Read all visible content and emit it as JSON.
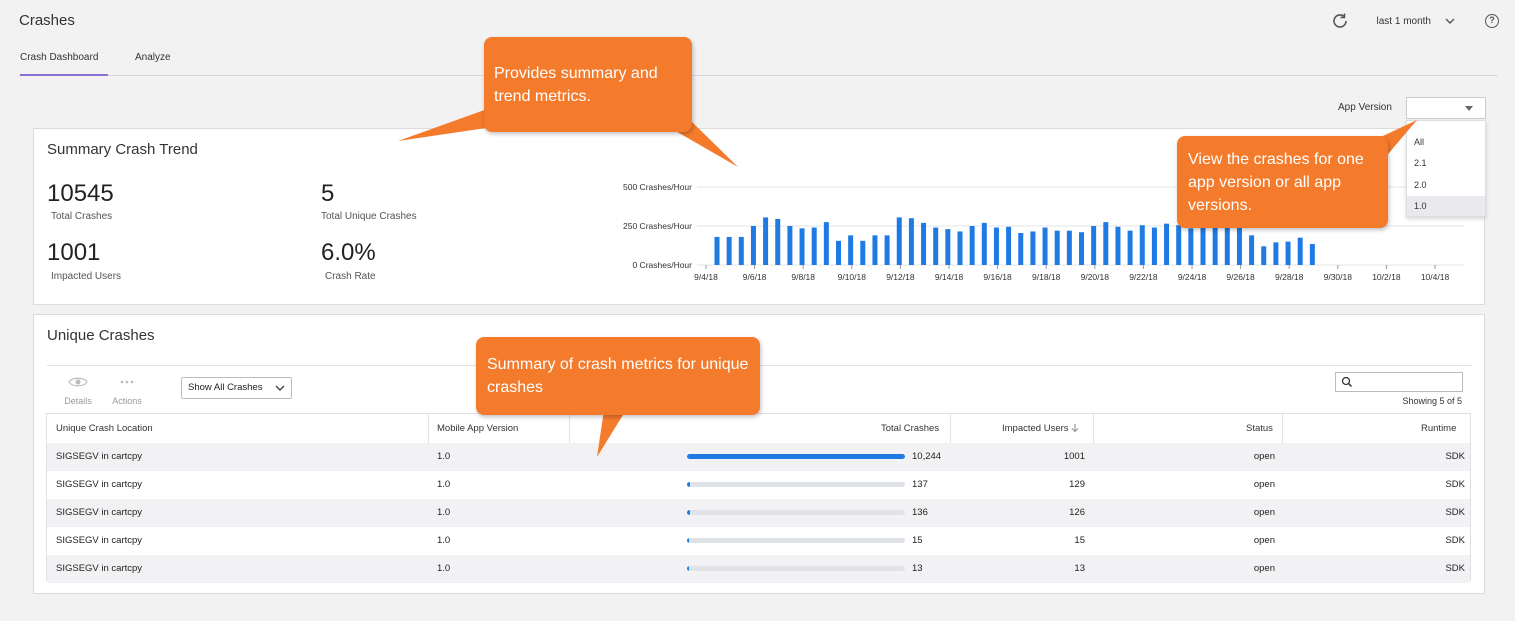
{
  "header": {
    "title": "Crashes",
    "range_label": "last 1 month",
    "icons": {
      "refresh": "refresh-icon",
      "help": "help-icon",
      "chevron": "chevron-down-icon"
    }
  },
  "tabs": [
    {
      "label": "Crash Dashboard",
      "active": true
    },
    {
      "label": "Analyze",
      "active": false
    }
  ],
  "app_version": {
    "label": "App Version",
    "selected": "",
    "options": [
      "All",
      "2.1",
      "2.0",
      "1.0"
    ],
    "highlighted": "1.0"
  },
  "summary": {
    "title": "Summary Crash Trend",
    "metrics": [
      {
        "value": "10545",
        "label": "Total Crashes"
      },
      {
        "value": "5",
        "label": "Total Unique Crashes"
      },
      {
        "value": "1001",
        "label": "Impacted Users"
      },
      {
        "value": "6.0%",
        "label": "Crash Rate"
      }
    ]
  },
  "chart_data": {
    "type": "bar",
    "y_ticks": [
      "500 Crashes/Hour",
      "250 Crashes/Hour",
      "0 Crashes/Hour"
    ],
    "ylim": [
      0,
      500
    ],
    "x_tick_labels": [
      "9/4/18",
      "9/6/18",
      "9/8/18",
      "9/10/18",
      "9/12/18",
      "9/14/18",
      "9/16/18",
      "9/18/18",
      "9/20/18",
      "9/22/18",
      "9/24/18",
      "9/26/18",
      "9/28/18",
      "9/30/18",
      "10/2/18",
      "10/4/18"
    ],
    "x_start": "9/4/18",
    "bar_color": "#1f7be3",
    "values": [
      180,
      180,
      180,
      250,
      305,
      295,
      250,
      235,
      240,
      275,
      155,
      190,
      155,
      190,
      190,
      305,
      300,
      270,
      240,
      230,
      215,
      250,
      270,
      240,
      245,
      205,
      215,
      240,
      220,
      220,
      210,
      250,
      275,
      245,
      220,
      255,
      240,
      265,
      255,
      235,
      255,
      245,
      265,
      245,
      190,
      120,
      145,
      150,
      175,
      135
    ]
  },
  "unique": {
    "title": "Unique Crashes",
    "toolbar": {
      "details": "Details",
      "actions": "Actions"
    },
    "filter": "Show All Crashes",
    "search_value": "",
    "showing": "Showing 5 of 5",
    "columns": [
      "Unique Crash Location",
      "Mobile App Version",
      "Total Crashes",
      "Impacted Users",
      "Status",
      "Runtime"
    ],
    "rows": [
      {
        "location": "SIGSEGV in cartcpy",
        "version": "1.0",
        "total": "10,244",
        "total_num": 10244,
        "users": "1001",
        "status": "open",
        "runtime": "SDK"
      },
      {
        "location": "SIGSEGV in cartcpy",
        "version": "1.0",
        "total": "137",
        "total_num": 137,
        "users": "129",
        "status": "open",
        "runtime": "SDK"
      },
      {
        "location": "SIGSEGV in cartcpy",
        "version": "1.0",
        "total": "136",
        "total_num": 136,
        "users": "126",
        "status": "open",
        "runtime": "SDK"
      },
      {
        "location": "SIGSEGV in cartcpy",
        "version": "1.0",
        "total": "15",
        "total_num": 15,
        "users": "15",
        "status": "open",
        "runtime": "SDK"
      },
      {
        "location": "SIGSEGV in cartcpy",
        "version": "1.0",
        "total": "13",
        "total_num": 13,
        "users": "13",
        "status": "open",
        "runtime": "SDK"
      }
    ]
  },
  "callouts": {
    "summary": "Provides summary and trend metrics.",
    "version": "View the crashes for one app version or all app versions.",
    "unique": "Summary of crash metrics for unique crashes",
    "color": "#f47b2c"
  }
}
